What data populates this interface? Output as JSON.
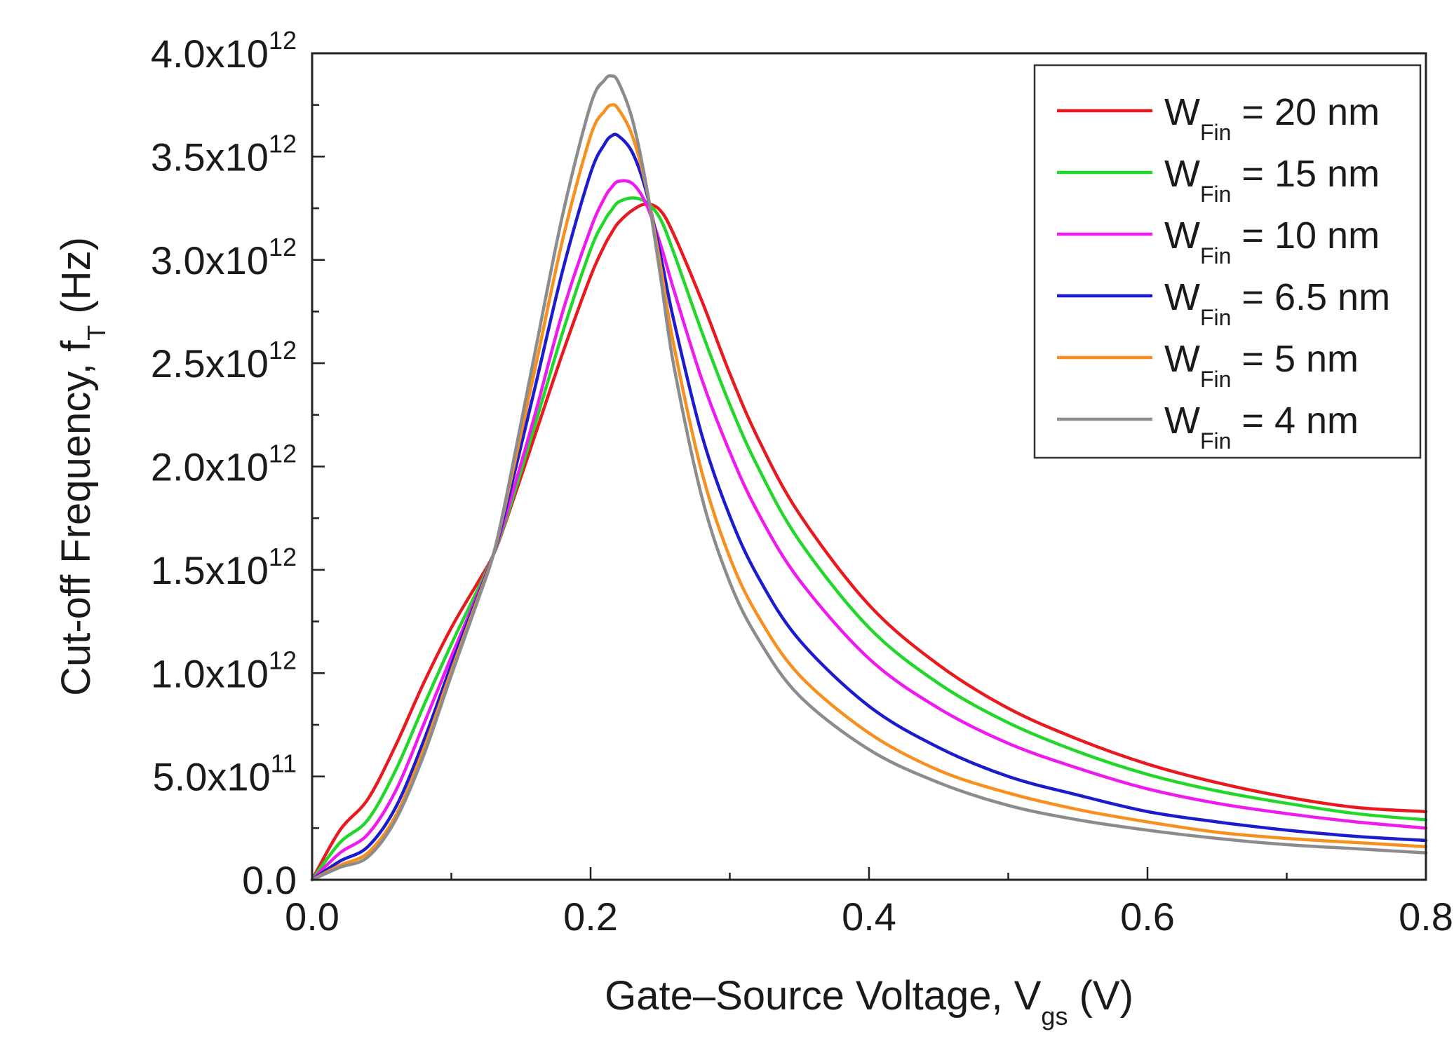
{
  "chart_data": {
    "type": "line",
    "title": "",
    "xlabel": {
      "main": "Gate–Source Voltage, V",
      "sub": "gs",
      "unit": " (V)"
    },
    "ylabel": {
      "main": "Cut-off Frequency, f",
      "sub": "T",
      "unit": " (Hz)"
    },
    "xlim": [
      0,
      0.8
    ],
    "ylim": [
      0,
      4000000000000.0
    ],
    "grid": false,
    "legend_position": "top-right",
    "x_ticks": [
      {
        "value": 0.0,
        "label": "0.0"
      },
      {
        "value": 0.2,
        "label": "0.2"
      },
      {
        "value": 0.4,
        "label": "0.4"
      },
      {
        "value": 0.6,
        "label": "0.6"
      },
      {
        "value": 0.8,
        "label": "0.8"
      }
    ],
    "y_ticks": [
      {
        "value": 0,
        "mantissa": "0.0",
        "exp": ""
      },
      {
        "value": 500000000000.0,
        "mantissa": "5.0x10",
        "exp": "11"
      },
      {
        "value": 1000000000000.0,
        "mantissa": "1.0x10",
        "exp": "12"
      },
      {
        "value": 1500000000000.0,
        "mantissa": "1.5x10",
        "exp": "12"
      },
      {
        "value": 2000000000000.0,
        "mantissa": "2.0x10",
        "exp": "12"
      },
      {
        "value": 2500000000000.0,
        "mantissa": "2.5x10",
        "exp": "12"
      },
      {
        "value": 3000000000000.0,
        "mantissa": "3.0x10",
        "exp": "12"
      },
      {
        "value": 3500000000000.0,
        "mantissa": "3.5x10",
        "exp": "12"
      },
      {
        "value": 4000000000000.0,
        "mantissa": "4.0x10",
        "exp": "12"
      }
    ],
    "x": [
      0,
      0.02,
      0.04,
      0.06,
      0.08,
      0.1,
      0.12,
      0.13,
      0.14,
      0.16,
      0.18,
      0.2,
      0.21,
      0.215,
      0.22,
      0.23,
      0.24,
      0.25,
      0.26,
      0.28,
      0.3,
      0.32,
      0.35,
      0.4,
      0.45,
      0.5,
      0.55,
      0.6,
      0.65,
      0.7,
      0.75,
      0.8
    ],
    "series": [
      {
        "name": "20 nm",
        "label_prefix": "W",
        "label_sub": "Fin",
        "label_suffix": " = 20 nm",
        "color": "#e8191f",
        "values": [
          0,
          240000000000.0,
          390000000000.0,
          650000000000.0,
          950000000000.0,
          1220000000000.0,
          1450000000000.0,
          1570000000000.0,
          1750000000000.0,
          2150000000000.0,
          2550000000000.0,
          2920000000000.0,
          3070000000000.0,
          3130000000000.0,
          3180000000000.0,
          3240000000000.0,
          3270000000000.0,
          3240000000000.0,
          3120000000000.0,
          2800000000000.0,
          2450000000000.0,
          2140000000000.0,
          1770000000000.0,
          1330000000000.0,
          1040000000000.0,
          830000000000.0,
          680000000000.0,
          560000000000.0,
          470000000000.0,
          400000000000.0,
          350000000000.0,
          330000000000.0
        ]
      },
      {
        "name": "15 nm",
        "label_prefix": "W",
        "label_sub": "Fin",
        "label_suffix": " = 15 nm",
        "color": "#22d62a",
        "values": [
          0,
          180000000000.0,
          290000000000.0,
          530000000000.0,
          840000000000.0,
          1140000000000.0,
          1420000000000.0,
          1570000000000.0,
          1760000000000.0,
          2200000000000.0,
          2650000000000.0,
          3050000000000.0,
          3190000000000.0,
          3240000000000.0,
          3280000000000.0,
          3300000000000.0,
          3280000000000.0,
          3200000000000.0,
          3030000000000.0,
          2650000000000.0,
          2300000000000.0,
          2000000000000.0,
          1640000000000.0,
          1220000000000.0,
          950000000000.0,
          760000000000.0,
          620000000000.0,
          510000000000.0,
          430000000000.0,
          370000000000.0,
          320000000000.0,
          290000000000.0
        ]
      },
      {
        "name": "10 nm",
        "label_prefix": "W",
        "label_sub": "Fin",
        "label_suffix": " = 10 nm",
        "color": "#ef1aef",
        "values": [
          0,
          130000000000.0,
          220000000000.0,
          430000000000.0,
          750000000000.0,
          1080000000000.0,
          1400000000000.0,
          1570000000000.0,
          1780000000000.0,
          2250000000000.0,
          2750000000000.0,
          3150000000000.0,
          3300000000000.0,
          3350000000000.0,
          3380000000000.0,
          3370000000000.0,
          3270000000000.0,
          3080000000000.0,
          2850000000000.0,
          2420000000000.0,
          2070000000000.0,
          1780000000000.0,
          1450000000000.0,
          1070000000000.0,
          830000000000.0,
          660000000000.0,
          540000000000.0,
          440000000000.0,
          370000000000.0,
          320000000000.0,
          280000000000.0,
          250000000000.0
        ]
      },
      {
        "name": "6.5 nm",
        "label_prefix": "W",
        "label_sub": "Fin",
        "label_suffix": " = 6.5 nm",
        "color": "#1c1ccc",
        "values": [
          0,
          90000000000.0,
          160000000000.0,
          350000000000.0,
          670000000000.0,
          1040000000000.0,
          1390000000000.0,
          1570000000000.0,
          1820000000000.0,
          2380000000000.0,
          2950000000000.0,
          3420000000000.0,
          3560000000000.0,
          3600000000000.0,
          3600000000000.0,
          3520000000000.0,
          3330000000000.0,
          3030000000000.0,
          2700000000000.0,
          2150000000000.0,
          1760000000000.0,
          1470000000000.0,
          1160000000000.0,
          840000000000.0,
          640000000000.0,
          500000000000.0,
          410000000000.0,
          330000000000.0,
          280000000000.0,
          240000000000.0,
          210000000000.0,
          190000000000.0
        ]
      },
      {
        "name": "5 nm",
        "label_prefix": "W",
        "label_sub": "Fin",
        "label_suffix": " = 5 nm",
        "color": "#f7901e",
        "values": [
          0,
          70000000000.0,
          130000000000.0,
          310000000000.0,
          630000000000.0,
          1010000000000.0,
          1380000000000.0,
          1570000000000.0,
          1850000000000.0,
          2470000000000.0,
          3100000000000.0,
          3600000000000.0,
          3720000000000.0,
          3750000000000.0,
          3730000000000.0,
          3600000000000.0,
          3350000000000.0,
          2980000000000.0,
          2580000000000.0,
          1970000000000.0,
          1560000000000.0,
          1280000000000.0,
          990000000000.0,
          710000000000.0,
          530000000000.0,
          420000000000.0,
          340000000000.0,
          280000000000.0,
          230000000000.0,
          200000000000.0,
          180000000000.0,
          160000000000.0
        ]
      },
      {
        "name": "4 nm",
        "label_prefix": "W",
        "label_sub": "Fin",
        "label_suffix": " = 4 nm",
        "color": "#8c8c8c",
        "values": [
          0,
          60000000000.0,
          110000000000.0,
          290000000000.0,
          600000000000.0,
          990000000000.0,
          1370000000000.0,
          1570000000000.0,
          1870000000000.0,
          2550000000000.0,
          3220000000000.0,
          3750000000000.0,
          3870000000000.0,
          3890000000000.0,
          3860000000000.0,
          3680000000000.0,
          3360000000000.0,
          2930000000000.0,
          2480000000000.0,
          1850000000000.0,
          1440000000000.0,
          1170000000000.0,
          890000000000.0,
          630000000000.0,
          470000000000.0,
          360000000000.0,
          290000000000.0,
          240000000000.0,
          200000000000.0,
          170000000000.0,
          150000000000.0,
          130000000000.0
        ]
      }
    ]
  }
}
